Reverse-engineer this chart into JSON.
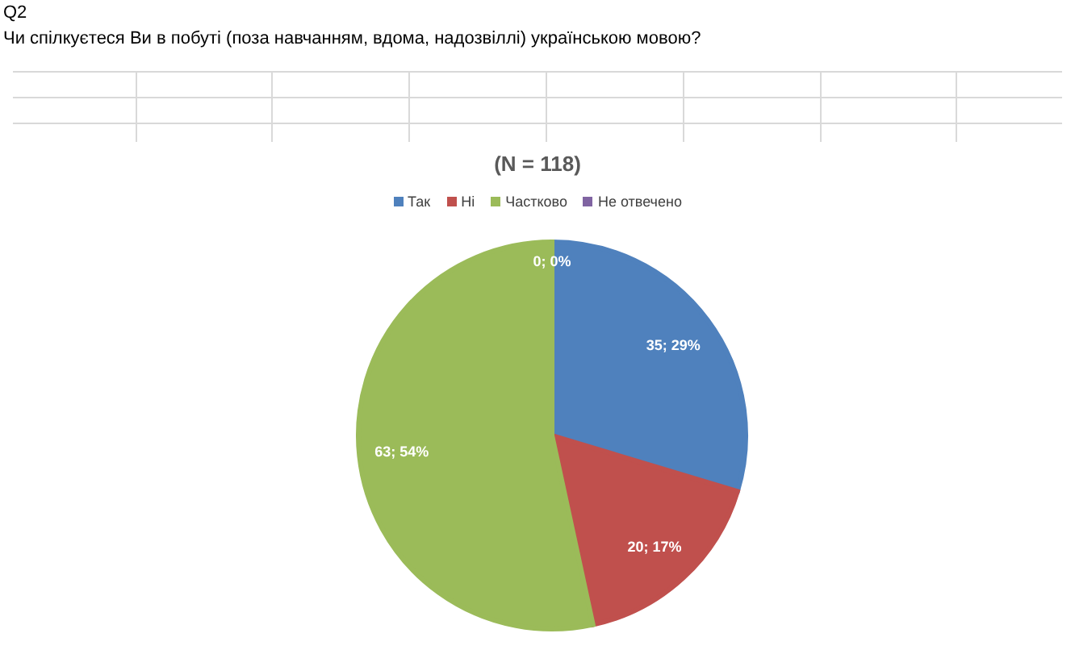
{
  "chart_data": {
    "type": "pie",
    "title": "(N = 118)",
    "annotations": [
      "Q2",
      "Чи спілкуєтеся Ви в побуті (поза навчанням, вдома, надозвіллі) українською мовою?"
    ],
    "categories": [
      "Так",
      "Ні",
      "Частково",
      "Не отвечено"
    ],
    "values": [
      35,
      20,
      63,
      0
    ],
    "colors": [
      "#4f81bd",
      "#c0504d",
      "#9bbb59",
      "#8064a2"
    ],
    "value_labels": [
      "35; 29%",
      "20; 17%",
      "63; 54%",
      "0; 0%"
    ],
    "legend": "top"
  }
}
